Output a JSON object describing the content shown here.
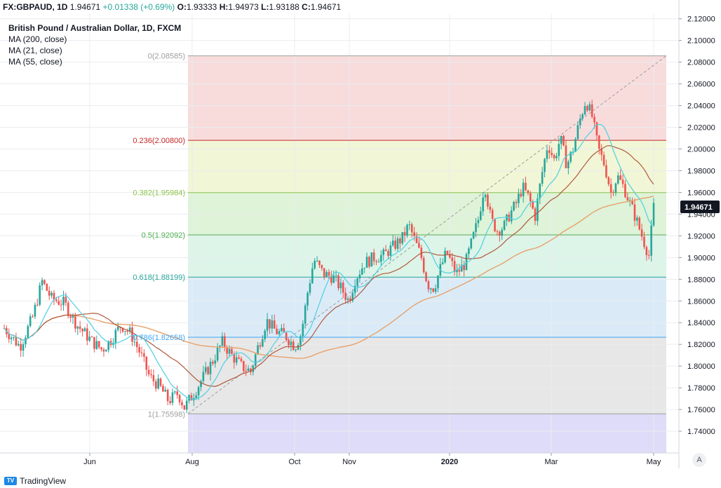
{
  "header": {
    "symbol": "FX:GBPAUD, 1D",
    "last": "1.94671",
    "change": "+0.01338 (+0.69%)",
    "o_label": "O:",
    "o": "1.93333",
    "h_label": "H:",
    "h": "1.94973",
    "l_label": "L:",
    "l": "1.93188",
    "c_label": "C:",
    "c": "1.94671"
  },
  "legend": {
    "title": "British Pound / Australian Dollar, 1D, FXCM",
    "ma200": "MA (200, close)",
    "ma21": "MA (21, close)",
    "ma55": "MA (55, close)"
  },
  "branding": {
    "name": "TradingView",
    "icon": "tradingview-logo-icon"
  },
  "auto_scale_label": "A",
  "colors": {
    "up": "#26a69a",
    "down": "#ef5350",
    "ma21": "#4dd0e1",
    "ma55": "#b05a3c",
    "ma200": "#e8a16a",
    "grid": "#e9ecef",
    "price_badge": "#131722"
  },
  "chart_data": {
    "type": "candlestick",
    "title": "British Pound / Australian Dollar, 1D, FXCM",
    "ylim": [
      1.72,
      2.125
    ],
    "y_ticks": [
      "2.12000",
      "2.10000",
      "2.08000",
      "2.06000",
      "2.04000",
      "2.02000",
      "2.00000",
      "1.98000",
      "1.96000",
      "1.94000",
      "1.92000",
      "1.90000",
      "1.88000",
      "1.86000",
      "1.84000",
      "1.82000",
      "1.80000",
      "1.78000",
      "1.76000",
      "1.74000"
    ],
    "x_labels": [
      "Jun",
      "Aug",
      "Oct",
      "Nov",
      "2020",
      "Mar",
      "May"
    ],
    "current_price": "1.94671",
    "fibonacci": {
      "levels": [
        {
          "ratio": "0",
          "price": 2.08585,
          "label": "0(2.08585)",
          "color": "#9e9e9e"
        },
        {
          "ratio": "0.236",
          "price": 2.008,
          "label": "0.236(2.00800)",
          "color": "#c62828"
        },
        {
          "ratio": "0.382",
          "price": 1.95984,
          "label": "0.382(1.95984)",
          "color": "#8bc34a"
        },
        {
          "ratio": "0.5",
          "price": 1.92092,
          "label": "0.5(1.92092)",
          "color": "#4caf50"
        },
        {
          "ratio": "0.618",
          "price": 1.88199,
          "label": "0.618(1.88199)",
          "color": "#26a69a"
        },
        {
          "ratio": "0.786",
          "price": 1.82658,
          "label": "0.786(1.82658)",
          "color": "#42a5f5"
        },
        {
          "ratio": "1",
          "price": 1.75598,
          "label": "1(1.75598)",
          "color": "#9e9e9e"
        }
      ],
      "zone_colors": [
        "#f7d6d6",
        "#eef4cf",
        "#d8f1d1",
        "#d7f2e4",
        "#d3e7f6",
        "#e3e3e3",
        "#d8d6f7"
      ]
    },
    "series_points": [
      {
        "d": 0,
        "c": 1.835
      },
      {
        "d": 10,
        "c": 1.818
      },
      {
        "d": 18,
        "c": 1.845
      },
      {
        "d": 24,
        "c": 1.878
      },
      {
        "d": 30,
        "c": 1.862
      },
      {
        "d": 38,
        "c": 1.858
      },
      {
        "d": 46,
        "c": 1.838
      },
      {
        "d": 56,
        "c": 1.822
      },
      {
        "d": 62,
        "c": 1.815
      },
      {
        "d": 68,
        "c": 1.825
      },
      {
        "d": 74,
        "c": 1.838
      },
      {
        "d": 80,
        "c": 1.83
      },
      {
        "d": 86,
        "c": 1.812
      },
      {
        "d": 92,
        "c": 1.79
      },
      {
        "d": 98,
        "c": 1.782
      },
      {
        "d": 104,
        "c": 1.768
      },
      {
        "d": 110,
        "c": 1.775
      },
      {
        "d": 114,
        "c": 1.762
      },
      {
        "d": 120,
        "c": 1.775
      },
      {
        "d": 126,
        "c": 1.79
      },
      {
        "d": 132,
        "c": 1.805
      },
      {
        "d": 138,
        "c": 1.822
      },
      {
        "d": 144,
        "c": 1.81
      },
      {
        "d": 150,
        "c": 1.8
      },
      {
        "d": 156,
        "c": 1.795
      },
      {
        "d": 160,
        "c": 1.815
      },
      {
        "d": 166,
        "c": 1.842
      },
      {
        "d": 172,
        "c": 1.832
      },
      {
        "d": 178,
        "c": 1.828
      },
      {
        "d": 184,
        "c": 1.818
      },
      {
        "d": 188,
        "c": 1.83
      },
      {
        "d": 192,
        "c": 1.868
      },
      {
        "d": 196,
        "c": 1.898
      },
      {
        "d": 202,
        "c": 1.885
      },
      {
        "d": 208,
        "c": 1.882
      },
      {
        "d": 214,
        "c": 1.87
      },
      {
        "d": 218,
        "c": 1.86
      },
      {
        "d": 222,
        "c": 1.88
      },
      {
        "d": 228,
        "c": 1.895
      },
      {
        "d": 234,
        "c": 1.9
      },
      {
        "d": 240,
        "c": 1.902
      },
      {
        "d": 246,
        "c": 1.91
      },
      {
        "d": 252,
        "c": 1.918
      },
      {
        "d": 256,
        "c": 1.93
      },
      {
        "d": 260,
        "c": 1.915
      },
      {
        "d": 264,
        "c": 1.9
      },
      {
        "d": 268,
        "c": 1.875
      },
      {
        "d": 272,
        "c": 1.872
      },
      {
        "d": 276,
        "c": 1.89
      },
      {
        "d": 280,
        "c": 1.905
      },
      {
        "d": 286,
        "c": 1.885
      },
      {
        "d": 292,
        "c": 1.895
      },
      {
        "d": 296,
        "c": 1.915
      },
      {
        "d": 300,
        "c": 1.935
      },
      {
        "d": 304,
        "c": 1.968
      },
      {
        "d": 308,
        "c": 1.935
      },
      {
        "d": 312,
        "c": 1.925
      },
      {
        "d": 316,
        "c": 1.928
      },
      {
        "d": 320,
        "c": 1.94
      },
      {
        "d": 324,
        "c": 1.95
      },
      {
        "d": 328,
        "c": 1.965
      },
      {
        "d": 332,
        "c": 1.955
      },
      {
        "d": 336,
        "c": 1.938
      },
      {
        "d": 340,
        "c": 1.975
      },
      {
        "d": 344,
        "c": 2.005
      },
      {
        "d": 348,
        "c": 1.99
      },
      {
        "d": 352,
        "c": 2.01
      },
      {
        "d": 356,
        "c": 1.985
      },
      {
        "d": 360,
        "c": 2.0
      },
      {
        "d": 364,
        "c": 2.025
      },
      {
        "d": 368,
        "c": 2.045
      },
      {
        "d": 372,
        "c": 2.03
      },
      {
        "d": 376,
        "c": 2.0
      },
      {
        "d": 380,
        "c": 1.985
      },
      {
        "d": 384,
        "c": 1.96
      },
      {
        "d": 388,
        "c": 1.975
      },
      {
        "d": 392,
        "c": 1.965
      },
      {
        "d": 396,
        "c": 1.95
      },
      {
        "d": 400,
        "c": 1.935
      },
      {
        "d": 404,
        "c": 1.918
      },
      {
        "d": 408,
        "c": 1.902
      },
      {
        "d": 411,
        "c": 1.9467
      }
    ]
  }
}
